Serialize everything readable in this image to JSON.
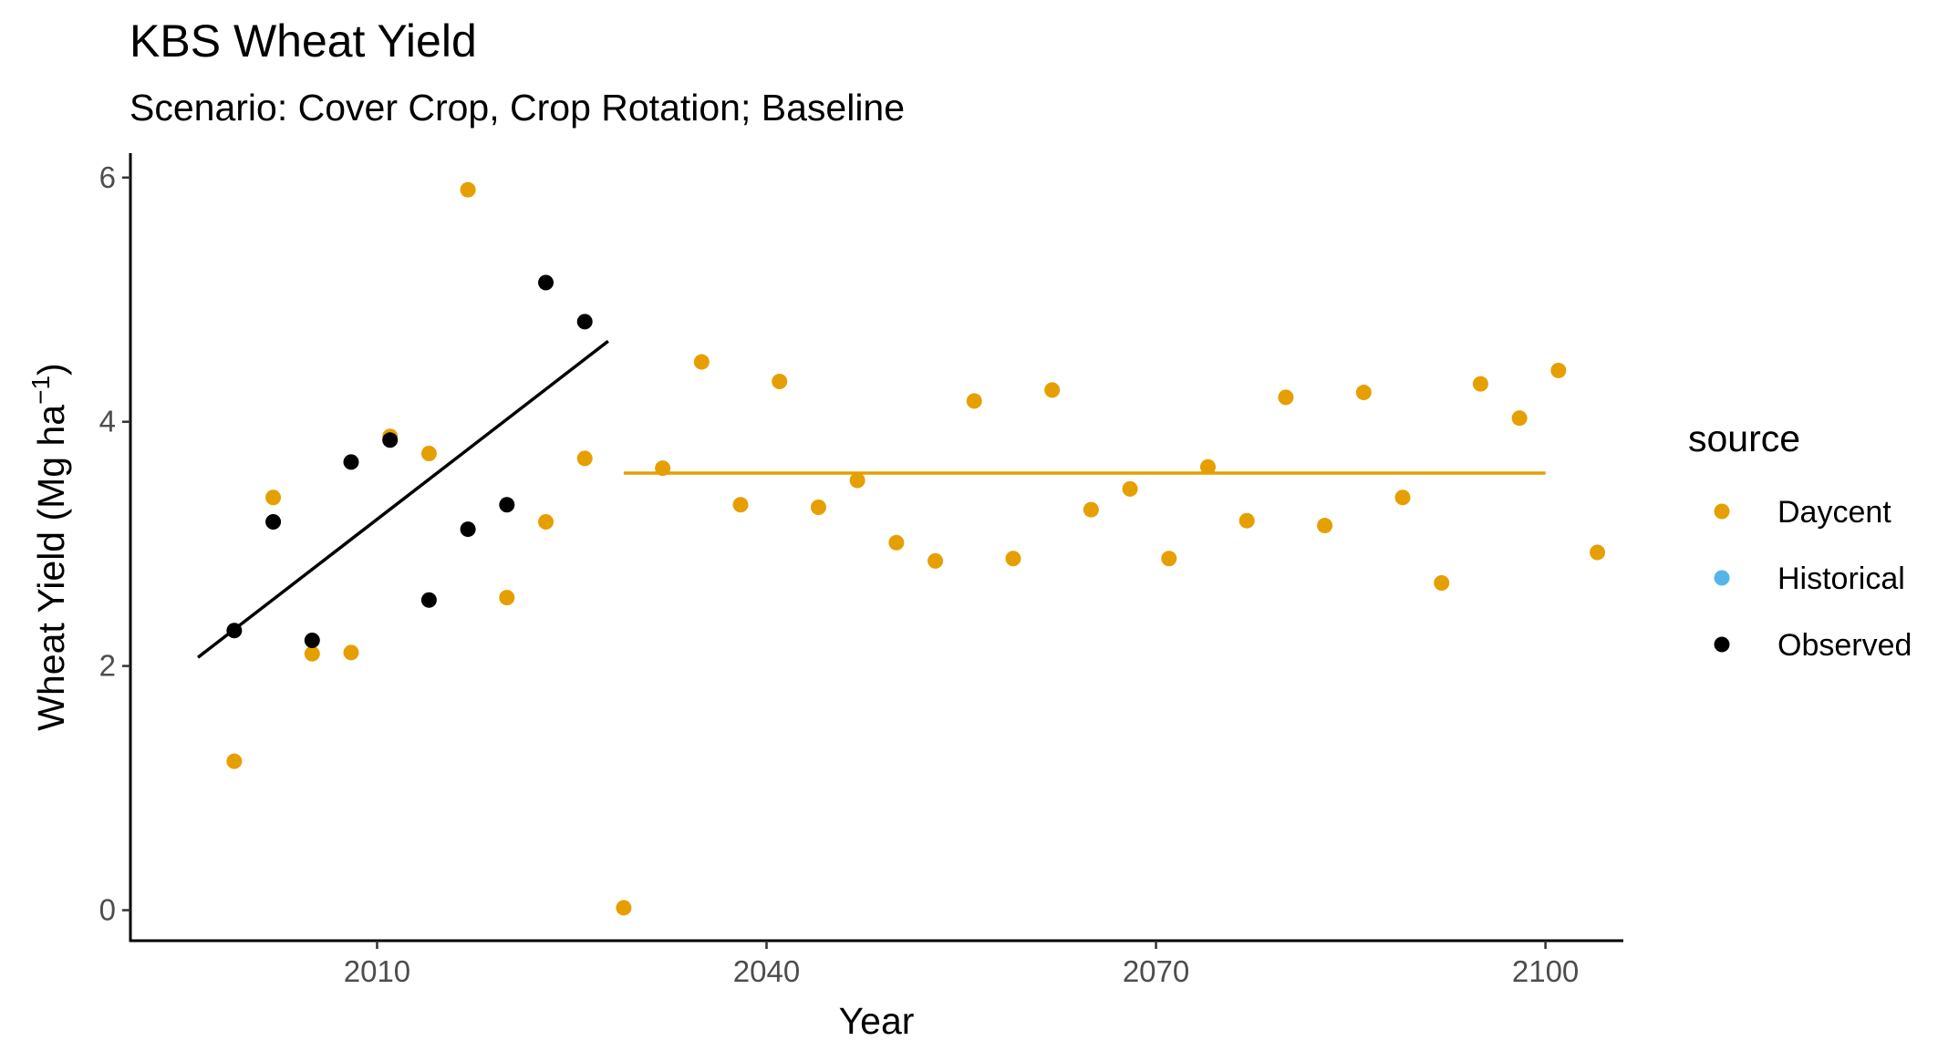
{
  "chart_data": {
    "type": "scatter",
    "title": "KBS Wheat Yield",
    "subtitle": "Scenario: Cover Crop, Crop Rotation; Baseline",
    "xlabel": "Year",
    "ylabel": "Wheat Yield (Mg ha",
    "ylabel_superscript": "−1",
    "ylabel_close": ")",
    "xlim": [
      1991,
      2106
    ],
    "ylim": [
      -0.25,
      6.2
    ],
    "x_ticks": [
      2010,
      2040,
      2070,
      2100
    ],
    "y_ticks": [
      0,
      2,
      4,
      6
    ],
    "grid": false,
    "legend": {
      "title": "source",
      "position": "right",
      "entries": [
        {
          "name": "Daycent",
          "color": "#E69F00"
        },
        {
          "name": "Historical",
          "color": "#56B4E9"
        },
        {
          "name": "Observed",
          "color": "#000000"
        }
      ]
    },
    "series": [
      {
        "name": "Daycent",
        "color": "#E69F00",
        "points": [
          [
            1999,
            1.22
          ],
          [
            2002,
            3.38
          ],
          [
            2005,
            2.1
          ],
          [
            2008,
            2.11
          ],
          [
            2011,
            3.88
          ],
          [
            2014,
            3.74
          ],
          [
            2017,
            5.9
          ],
          [
            2020,
            2.56
          ],
          [
            2023,
            3.18
          ],
          [
            2026,
            3.7
          ],
          [
            2029,
            0.02
          ],
          [
            2032,
            3.62
          ],
          [
            2035,
            4.49
          ],
          [
            2038,
            3.32
          ],
          [
            2041,
            4.33
          ],
          [
            2044,
            3.3
          ],
          [
            2047,
            3.52
          ],
          [
            2050,
            3.01
          ],
          [
            2053,
            2.86
          ],
          [
            2056,
            4.17
          ],
          [
            2059,
            2.88
          ],
          [
            2062,
            4.26
          ],
          [
            2065,
            3.28
          ],
          [
            2068,
            3.45
          ],
          [
            2071,
            2.88
          ],
          [
            2074,
            3.63
          ],
          [
            2077,
            3.19
          ],
          [
            2080,
            4.2
          ],
          [
            2083,
            3.15
          ],
          [
            2086,
            4.24
          ],
          [
            2089,
            3.38
          ],
          [
            2092,
            2.68
          ],
          [
            2095,
            4.31
          ],
          [
            2098,
            4.03
          ],
          [
            2101,
            4.42
          ],
          [
            2104,
            2.93
          ]
        ],
        "trend": {
          "x": [
            2029,
            2100
          ],
          "y": [
            3.58,
            3.58
          ]
        }
      },
      {
        "name": "Observed",
        "color": "#000000",
        "points": [
          [
            1999,
            2.29
          ],
          [
            2002,
            3.18
          ],
          [
            2005,
            2.21
          ],
          [
            2008,
            3.67
          ],
          [
            2011,
            3.85
          ],
          [
            2014,
            2.54
          ],
          [
            2017,
            3.12
          ],
          [
            2020,
            3.32
          ],
          [
            2023,
            5.14
          ],
          [
            2026,
            4.82
          ]
        ],
        "trend": {
          "x": [
            1996.2,
            2027.8
          ],
          "y": [
            2.07,
            4.66
          ]
        }
      }
    ]
  }
}
